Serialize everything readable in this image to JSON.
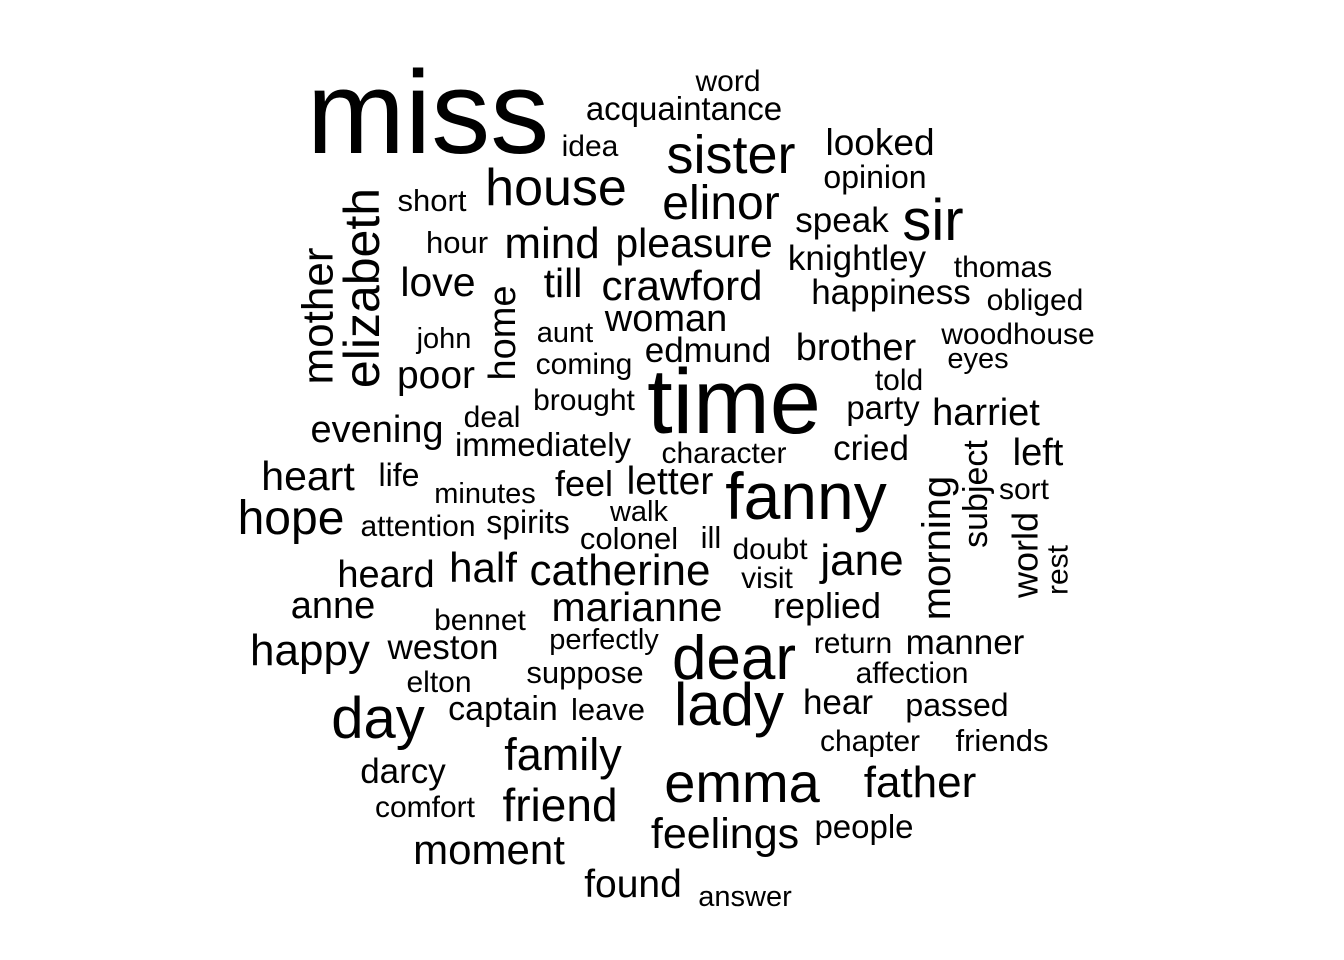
{
  "word_cloud": {
    "text_color": "#000000",
    "background_color": "#ffffff",
    "words": [
      {
        "text": "miss",
        "rotated": false
      },
      {
        "text": "word",
        "rotated": false
      },
      {
        "text": "acquaintance",
        "rotated": false
      },
      {
        "text": "idea",
        "rotated": false
      },
      {
        "text": "sister",
        "rotated": false
      },
      {
        "text": "looked",
        "rotated": false
      },
      {
        "text": "opinion",
        "rotated": false
      },
      {
        "text": "short",
        "rotated": false
      },
      {
        "text": "house",
        "rotated": false
      },
      {
        "text": "elinor",
        "rotated": false
      },
      {
        "text": "speak",
        "rotated": false
      },
      {
        "text": "sir",
        "rotated": false
      },
      {
        "text": "elizabeth",
        "rotated": true
      },
      {
        "text": "mother",
        "rotated": true
      },
      {
        "text": "hour",
        "rotated": false
      },
      {
        "text": "mind",
        "rotated": false
      },
      {
        "text": "pleasure",
        "rotated": false
      },
      {
        "text": "knightley",
        "rotated": false
      },
      {
        "text": "thomas",
        "rotated": false
      },
      {
        "text": "love",
        "rotated": false
      },
      {
        "text": "home",
        "rotated": true
      },
      {
        "text": "till",
        "rotated": false
      },
      {
        "text": "crawford",
        "rotated": false
      },
      {
        "text": "happiness",
        "rotated": false
      },
      {
        "text": "obliged",
        "rotated": false
      },
      {
        "text": "aunt",
        "rotated": false
      },
      {
        "text": "woman",
        "rotated": false
      },
      {
        "text": "john",
        "rotated": false
      },
      {
        "text": "woodhouse",
        "rotated": false
      },
      {
        "text": "brother",
        "rotated": false
      },
      {
        "text": "edmund",
        "rotated": false
      },
      {
        "text": "eyes",
        "rotated": false
      },
      {
        "text": "coming",
        "rotated": false
      },
      {
        "text": "poor",
        "rotated": false
      },
      {
        "text": "told",
        "rotated": false
      },
      {
        "text": "time",
        "rotated": false
      },
      {
        "text": "brought",
        "rotated": false
      },
      {
        "text": "deal",
        "rotated": false
      },
      {
        "text": "party",
        "rotated": false
      },
      {
        "text": "harriet",
        "rotated": false
      },
      {
        "text": "evening",
        "rotated": false
      },
      {
        "text": "immediately",
        "rotated": false
      },
      {
        "text": "character",
        "rotated": false
      },
      {
        "text": "cried",
        "rotated": false
      },
      {
        "text": "left",
        "rotated": false
      },
      {
        "text": "subject",
        "rotated": true
      },
      {
        "text": "heart",
        "rotated": false
      },
      {
        "text": "life",
        "rotated": false
      },
      {
        "text": "feel",
        "rotated": false
      },
      {
        "text": "letter",
        "rotated": false
      },
      {
        "text": "fanny",
        "rotated": false
      },
      {
        "text": "minutes",
        "rotated": false
      },
      {
        "text": "sort",
        "rotated": false
      },
      {
        "text": "morning",
        "rotated": true
      },
      {
        "text": "hope",
        "rotated": false
      },
      {
        "text": "attention",
        "rotated": false
      },
      {
        "text": "spirits",
        "rotated": false
      },
      {
        "text": "walk",
        "rotated": false
      },
      {
        "text": "colonel",
        "rotated": false
      },
      {
        "text": "ill",
        "rotated": false
      },
      {
        "text": "doubt",
        "rotated": false
      },
      {
        "text": "world",
        "rotated": true
      },
      {
        "text": "rest",
        "rotated": true
      },
      {
        "text": "heard",
        "rotated": false
      },
      {
        "text": "half",
        "rotated": false
      },
      {
        "text": "catherine",
        "rotated": false
      },
      {
        "text": "jane",
        "rotated": false
      },
      {
        "text": "visit",
        "rotated": false
      },
      {
        "text": "anne",
        "rotated": false
      },
      {
        "text": "bennet",
        "rotated": false
      },
      {
        "text": "marianne",
        "rotated": false
      },
      {
        "text": "replied",
        "rotated": false
      },
      {
        "text": "perfectly",
        "rotated": false
      },
      {
        "text": "happy",
        "rotated": false
      },
      {
        "text": "weston",
        "rotated": false
      },
      {
        "text": "dear",
        "rotated": false
      },
      {
        "text": "return",
        "rotated": false
      },
      {
        "text": "manner",
        "rotated": false
      },
      {
        "text": "suppose",
        "rotated": false
      },
      {
        "text": "affection",
        "rotated": false
      },
      {
        "text": "elton",
        "rotated": false
      },
      {
        "text": "day",
        "rotated": false
      },
      {
        "text": "lady",
        "rotated": false
      },
      {
        "text": "hear",
        "rotated": false
      },
      {
        "text": "captain",
        "rotated": false
      },
      {
        "text": "leave",
        "rotated": false
      },
      {
        "text": "passed",
        "rotated": false
      },
      {
        "text": "chapter",
        "rotated": false
      },
      {
        "text": "friends",
        "rotated": false
      },
      {
        "text": "family",
        "rotated": false
      },
      {
        "text": "darcy",
        "rotated": false
      },
      {
        "text": "emma",
        "rotated": false
      },
      {
        "text": "father",
        "rotated": false
      },
      {
        "text": "comfort",
        "rotated": false
      },
      {
        "text": "friend",
        "rotated": false
      },
      {
        "text": "feelings",
        "rotated": false
      },
      {
        "text": "people",
        "rotated": false
      },
      {
        "text": "moment",
        "rotated": false
      },
      {
        "text": "found",
        "rotated": false
      },
      {
        "text": "answer",
        "rotated": false
      }
    ]
  }
}
